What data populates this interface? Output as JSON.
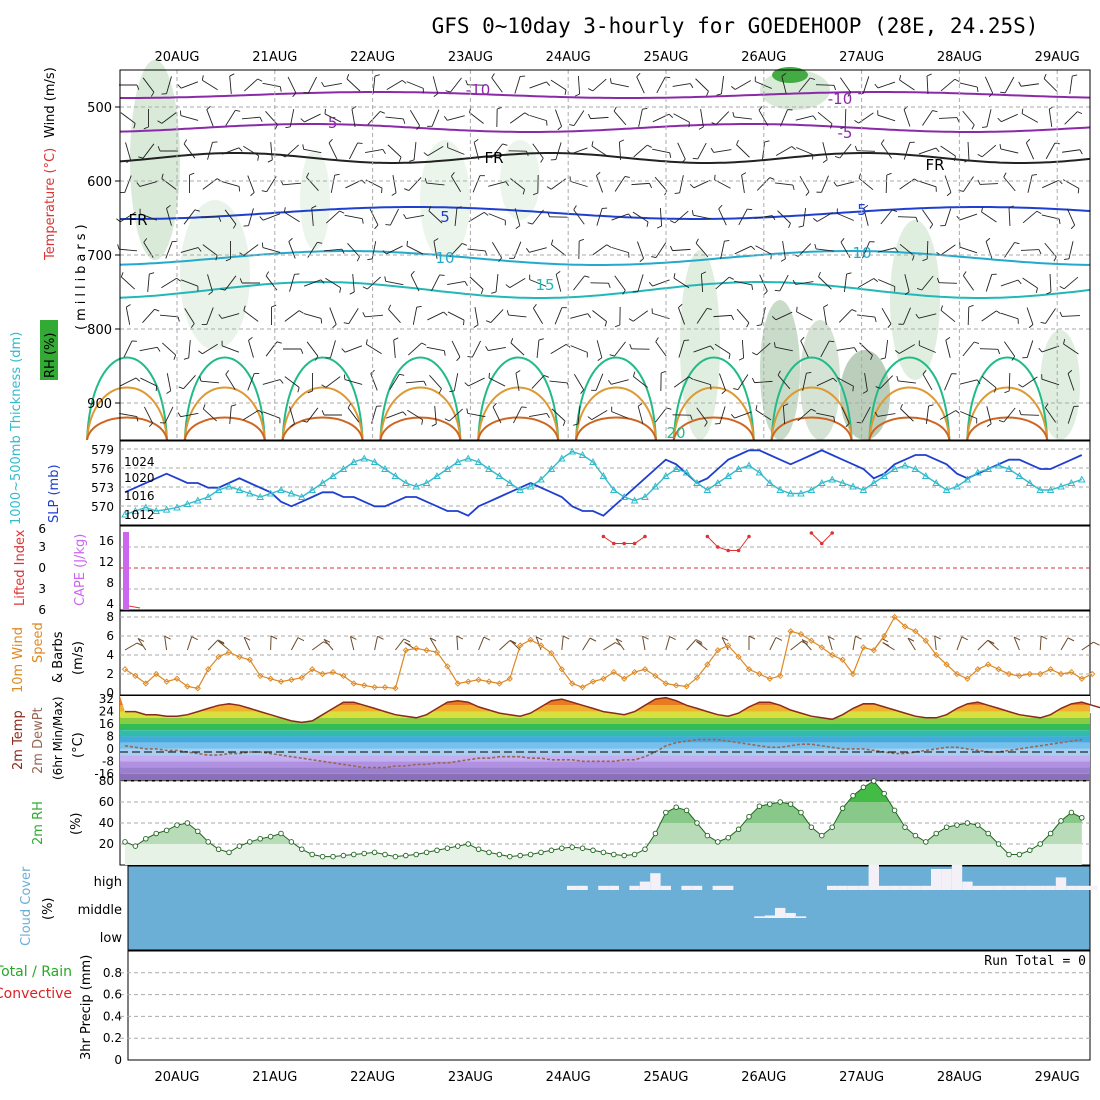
{
  "title": "GFS 0~10day 3-hourly for GOEDEHOOP (28E, 24.25S)",
  "dates": [
    "20AUG",
    "21AUG",
    "22AUG",
    "23AUG",
    "24AUG",
    "25AUG",
    "26AUG",
    "27AUG",
    "28AUG",
    "29AUG"
  ],
  "run_total": "Run Total = 0",
  "colors": {
    "frame": "#000000",
    "grid": "#999999",
    "precip_total": "#22aa22",
    "precip_conv": "#dd2222",
    "cloud_bg": "#6baed6",
    "slp": "#1f3fcf",
    "thick": "#33bbcc",
    "cape": "#cc66ee",
    "li": "#dd3333",
    "wind": "#dd8822",
    "temp": "#8b2a1a",
    "dew": "#996655",
    "rh": "#33aa33"
  },
  "panels": {
    "profile": {
      "label_wind": "Wind (m/s)",
      "label_temp": "Temperature (°C)",
      "label_rh": "RH (%)",
      "label_mb": "(millibars)",
      "pressure_ticks": [
        "500",
        "600",
        "700",
        "800",
        "900"
      ],
      "isotherm_labels": [
        "-10",
        "-5",
        "FR",
        "5",
        "10",
        "15",
        "20"
      ]
    },
    "thickness": {
      "label_thick": "1000~500mb Thickness (dm)",
      "label_slp": "SLP (mb)",
      "left_ticks": [
        "579",
        "576",
        "573",
        "570"
      ],
      "right_ticks": [
        "1024",
        "1020",
        "1016",
        "1012"
      ]
    },
    "instability": {
      "label_li": "Lifted Index",
      "label_cape": "CAPE (J/kg)",
      "li_ticks": [
        "6",
        "3",
        "0",
        "3",
        "6"
      ],
      "cape_ticks": [
        "16",
        "12",
        "8",
        "4"
      ]
    },
    "wind10": {
      "label_a": "10m Wind",
      "label_b": "Speed",
      "label_c": "& Barbs",
      "label_d": "(m/s)",
      "ticks": [
        "8",
        "6",
        "4",
        "2",
        "0"
      ]
    },
    "temp2m": {
      "label_a": "2m Temp",
      "label_b": "2m DewPt",
      "label_c": "(6hr Min/Max)",
      "label_d": "(°C)",
      "ticks": [
        "32",
        "24",
        "16",
        "8",
        "0",
        "-8",
        "-16"
      ]
    },
    "rh2m": {
      "label_a": "2m RH",
      "label_b": "(%)",
      "ticks": [
        "80",
        "60",
        "40",
        "20"
      ]
    },
    "cloud": {
      "label_a": "Cloud Cover",
      "label_b": "(%)",
      "ticks": [
        "high",
        "middle",
        "low"
      ]
    },
    "precip": {
      "label_a": "Total / Rain",
      "label_b": "Convective",
      "label_c": "3hr Precip (mm)",
      "ticks": [
        "0.8",
        "0.6",
        "0.4",
        "0.2",
        "0"
      ]
    }
  },
  "chart_data": [
    {
      "type": "line",
      "name": "slp",
      "ylabel": "SLP (mb)",
      "ylim": [
        1010,
        1028
      ],
      "values": [
        1017,
        1018,
        1019,
        1020,
        1021,
        1020,
        1019,
        1019,
        1018,
        1018,
        1019,
        1020,
        1019,
        1018,
        1017,
        1015,
        1014,
        1015,
        1016,
        1017,
        1017,
        1016,
        1016,
        1015,
        1014,
        1014,
        1015,
        1016,
        1016,
        1015,
        1014,
        1013,
        1013,
        1012,
        1014,
        1015,
        1016,
        1017,
        1018,
        1019,
        1018,
        1017,
        1016,
        1014,
        1013,
        1013,
        1012,
        1014,
        1016,
        1018,
        1020,
        1022,
        1024,
        1023,
        1021,
        1019,
        1020,
        1022,
        1024,
        1025,
        1026,
        1026,
        1025,
        1024,
        1023,
        1024,
        1025,
        1026,
        1025,
        1024,
        1023,
        1022,
        1020,
        1021,
        1023,
        1024,
        1025,
        1025,
        1024,
        1023,
        1021,
        1020,
        1021,
        1022,
        1023,
        1024,
        1024,
        1023,
        1022,
        1022,
        1023,
        1024,
        1025
      ]
    },
    {
      "type": "line",
      "name": "thickness",
      "ylabel": "1000~500mb Thickness (dm)",
      "ylim": [
        568,
        580
      ],
      "values": [
        569.5,
        570,
        570.5,
        570,
        570.2,
        570.5,
        571,
        571.5,
        572,
        573,
        573.5,
        573,
        572.5,
        572,
        572.5,
        573,
        572.5,
        572,
        573,
        574,
        575,
        576,
        577,
        577.5,
        577,
        576,
        575,
        574,
        573.5,
        574,
        575,
        576,
        577,
        577.5,
        577,
        576,
        575,
        574,
        573,
        573.5,
        574.5,
        576,
        577.5,
        578.5,
        578,
        577,
        575,
        573,
        572,
        571.5,
        572,
        573.5,
        575,
        576,
        575.5,
        574,
        573,
        574,
        575,
        576,
        576.5,
        575.5,
        574,
        573,
        572.5,
        572.5,
        573,
        574,
        574.5,
        574,
        573.5,
        573,
        574,
        575,
        576,
        576.5,
        576,
        575,
        574,
        573,
        573.5,
        574.5,
        575.5,
        576,
        576.5,
        576,
        575,
        574,
        573,
        573,
        573.5,
        574,
        574.5
      ]
    },
    {
      "type": "bar",
      "name": "cape",
      "ylabel": "CAPE (J/kg)",
      "ylim": [
        0,
        16
      ],
      "x_index": [
        0
      ],
      "values": [
        16
      ]
    },
    {
      "type": "line",
      "name": "lifted_index",
      "ylabel": "Lifted Index",
      "ylim": [
        6,
        -6
      ],
      "segments": [
        {
          "start": 46,
          "values": [
            -4.5,
            -3.5,
            -3.5,
            -3.5,
            -4.5
          ]
        },
        {
          "start": 56,
          "values": [
            -4.5,
            -3,
            -2.5,
            -2.5,
            -4.5
          ]
        },
        {
          "start": 66,
          "values": [
            -5,
            -3.5,
            -5
          ]
        }
      ]
    },
    {
      "type": "line",
      "name": "wind10_speed",
      "ylabel": "(m/s)",
      "ylim": [
        0,
        8
      ],
      "values": [
        2.5,
        1.8,
        1.0,
        2.0,
        1.2,
        1.5,
        0.7,
        0.5,
        2.5,
        3.8,
        4.3,
        3.8,
        3.5,
        1.8,
        1.5,
        1.2,
        1.4,
        1.6,
        2.5,
        2.0,
        2.2,
        1.8,
        1.0,
        0.8,
        0.6,
        0.6,
        0.5,
        4.5,
        4.7,
        4.5,
        4.3,
        2.8,
        1.0,
        1.2,
        1.4,
        1.2,
        1.0,
        1.5,
        5.0,
        5.6,
        5.0,
        4.2,
        2.5,
        1.0,
        0.6,
        1.2,
        1.5,
        2.2,
        1.5,
        2.2,
        2.5,
        1.8,
        1.0,
        0.8,
        0.7,
        1.6,
        3.0,
        4.5,
        5.0,
        3.8,
        2.5,
        2.0,
        1.5,
        1.8,
        6.5,
        6.2,
        5.5,
        4.8,
        4.0,
        3.5,
        2.0,
        4.8,
        4.5,
        6.0,
        8.0,
        7.0,
        6.5,
        5.5,
        4.0,
        3.0,
        2.0,
        1.5,
        2.5,
        3.0,
        2.5,
        2.0,
        1.8,
        2.0,
        2.0,
        2.5,
        2.0,
        2.2,
        1.5,
        2.0
      ]
    },
    {
      "type": "area",
      "name": "temp2m",
      "ylabel": "(°C)",
      "ylim": [
        -20,
        34
      ],
      "values": [
        24,
        24,
        22,
        22,
        21,
        21,
        22,
        24,
        26,
        28,
        29,
        28,
        26,
        24,
        22,
        20,
        18,
        17,
        18,
        22,
        26,
        30,
        30,
        28,
        26,
        24,
        22,
        21,
        20,
        22,
        26,
        30,
        31,
        30,
        27,
        25,
        23,
        22,
        21,
        23,
        27,
        31,
        32,
        30,
        28,
        26,
        24,
        23,
        22,
        24,
        28,
        32,
        33,
        31,
        28,
        26,
        24,
        22,
        21,
        23,
        27,
        30,
        30,
        28,
        25,
        23,
        21,
        20,
        19,
        22,
        26,
        29,
        29,
        27,
        25,
        23,
        21,
        20,
        20,
        22,
        26,
        29,
        30,
        28,
        26,
        24,
        22,
        21,
        20,
        22,
        26,
        29,
        30,
        28,
        26,
        23
      ]
    },
    {
      "type": "line",
      "name": "dewpt2m",
      "ylabel": "(°C)",
      "ylim": [
        -20,
        34
      ],
      "values": [
        2,
        1,
        0,
        0,
        -1,
        -1,
        -2,
        -3,
        -4,
        -4,
        -3,
        -3,
        -2,
        -2,
        -3,
        -4,
        -5,
        -6,
        -7,
        -8,
        -9,
        -10,
        -11,
        -12,
        -12,
        -12,
        -11,
        -11,
        -10,
        -10,
        -9,
        -9,
        -8,
        -7,
        -6,
        -6,
        -5,
        -5,
        -5,
        -6,
        -6,
        -7,
        -7,
        -7,
        -8,
        -8,
        -8,
        -8,
        -7,
        -7,
        -5,
        -2,
        2,
        4,
        5,
        6,
        6,
        6,
        5,
        4,
        3,
        2,
        1,
        1,
        2,
        3,
        3,
        2,
        1,
        0,
        0,
        0,
        -1,
        -2,
        -3,
        -3,
        -2,
        -1,
        0,
        1,
        1,
        0,
        -1,
        -2,
        -2,
        -1,
        0,
        1,
        2,
        3,
        4,
        5,
        6
      ]
    },
    {
      "type": "area",
      "name": "rh2m",
      "ylabel": "(%)",
      "ylim": [
        0,
        80
      ],
      "values": [
        22,
        18,
        25,
        30,
        33,
        38,
        40,
        32,
        22,
        15,
        12,
        18,
        22,
        25,
        27,
        30,
        22,
        15,
        10,
        8,
        8,
        9,
        10,
        11,
        12,
        10,
        8,
        9,
        10,
        12,
        14,
        16,
        18,
        20,
        15,
        12,
        10,
        8,
        9,
        10,
        12,
        14,
        16,
        17,
        16,
        14,
        12,
        10,
        9,
        10,
        15,
        30,
        50,
        55,
        52,
        40,
        28,
        22,
        26,
        34,
        46,
        56,
        58,
        60,
        58,
        50,
        36,
        28,
        36,
        54,
        66,
        74,
        80,
        68,
        52,
        36,
        28,
        22,
        30,
        36,
        38,
        40,
        38,
        30,
        20,
        10,
        10,
        14,
        20,
        30,
        42,
        50,
        45
      ]
    },
    {
      "type": "bar",
      "name": "cloud_high",
      "ylabel": "Cloud Cover (%)",
      "ylim": [
        0,
        100
      ],
      "values": [
        0,
        0,
        0,
        0,
        0,
        0,
        0,
        0,
        0,
        0,
        0,
        0,
        0,
        0,
        0,
        0,
        0,
        0,
        0,
        0,
        0,
        0,
        0,
        0,
        0,
        0,
        0,
        0,
        0,
        0,
        0,
        0,
        0,
        0,
        0,
        0,
        0,
        0,
        0,
        0,
        0,
        0,
        0,
        5,
        5,
        0,
        5,
        5,
        0,
        5,
        10,
        20,
        5,
        0,
        5,
        5,
        0,
        5,
        5,
        0,
        0,
        0,
        0,
        0,
        0,
        0,
        0,
        0,
        5,
        5,
        5,
        5,
        30,
        5,
        5,
        5,
        5,
        5,
        25,
        25,
        30,
        10,
        5,
        5,
        5,
        5,
        5,
        5,
        5,
        5,
        15,
        5,
        5,
        5
      ]
    },
    {
      "type": "bar",
      "name": "cloud_mid",
      "ylabel": "Cloud Cover (%)",
      "ylim": [
        0,
        100
      ],
      "values": [
        0,
        0,
        0,
        0,
        0,
        0,
        0,
        0,
        0,
        0,
        0,
        0,
        0,
        0,
        0,
        0,
        0,
        0,
        0,
        0,
        0,
        0,
        0,
        0,
        0,
        0,
        0,
        0,
        0,
        0,
        0,
        0,
        0,
        0,
        0,
        0,
        0,
        0,
        0,
        0,
        0,
        0,
        0,
        0,
        0,
        0,
        0,
        0,
        0,
        0,
        0,
        0,
        0,
        0,
        0,
        0,
        0,
        0,
        0,
        0,
        0,
        2,
        3,
        12,
        6,
        2,
        0,
        0,
        0,
        0,
        0,
        0,
        0,
        0,
        0,
        0,
        0,
        0,
        0,
        0,
        0,
        0,
        0,
        0,
        0,
        0,
        0,
        0,
        0,
        0,
        0,
        0,
        0,
        0
      ]
    },
    {
      "type": "bar",
      "name": "precip",
      "ylabel": "3hr Precip (mm)",
      "ylim": [
        0,
        1
      ],
      "values": []
    }
  ]
}
